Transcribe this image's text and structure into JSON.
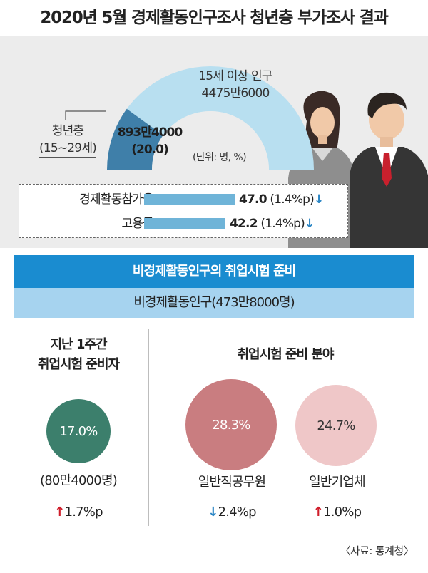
{
  "title": "2020년 5월 경제활동인구조사 청년층 부가조사 결과",
  "population": {
    "label_line1": "15세 이상 인구",
    "label_line2": "4475만6000"
  },
  "youth": {
    "label_line1": "청년층",
    "label_line2": "(15~29세)",
    "count": "893만4000",
    "share": "(20.0)"
  },
  "unit": "(단위: 명, %)",
  "stats": [
    {
      "label": "경제활동참가율",
      "value": "47.0",
      "change": "(1.4%p)",
      "arrow": "↓"
    },
    {
      "label": "고용률",
      "value": "42.2",
      "change": "(1.4%p)",
      "arrow": "↓"
    }
  ],
  "section": {
    "header": "비경제활동인구의 취업시험 준비",
    "subheader": "비경제활동인구(473만8000명)"
  },
  "left": {
    "head_line1": "지난 1주간",
    "head_line2": "취업시험 준비자",
    "circle_value": "17.0%",
    "count": "(80만4000명)",
    "change_arrow": "↑",
    "change": "1.7%p"
  },
  "right": {
    "head": "취업시험 준비 분야",
    "items": [
      {
        "value": "28.3%",
        "label": "일반직공무원",
        "change_arrow": "↓",
        "change": "2.4%p"
      },
      {
        "value": "24.7%",
        "label": "일반기업체",
        "change_arrow": "↑",
        "change": "1.0%p"
      }
    ]
  },
  "source": "〈자료: 통계청〉",
  "colors": {
    "arc": "#b8dff0",
    "wedge": "#3f7fa9",
    "bar": "#6fb4d8",
    "band_dark": "#1a8cd0",
    "band_light": "#a6d3ef",
    "circle_green": "#3c7f6c",
    "circle_rose": "#c97d80",
    "circle_pink": "#efc7c8",
    "arrow_down": "#2b86c5",
    "arrow_up": "#d01e2b"
  },
  "chart_data": [
    {
      "type": "pie",
      "title": "",
      "slices": [
        {
          "label": "청년층(15~29세)",
          "value": 20.0
        },
        {
          "label": "15세 이상 인구 (기타)",
          "value": 80.0
        }
      ],
      "total_label": "15세 이상 인구 4475만6000"
    },
    {
      "type": "bar",
      "categories": [
        "경제활동참가율",
        "고용률"
      ],
      "values": [
        47.0,
        42.2
      ],
      "changes_pctp": [
        -1.4,
        -1.4
      ]
    }
  ]
}
